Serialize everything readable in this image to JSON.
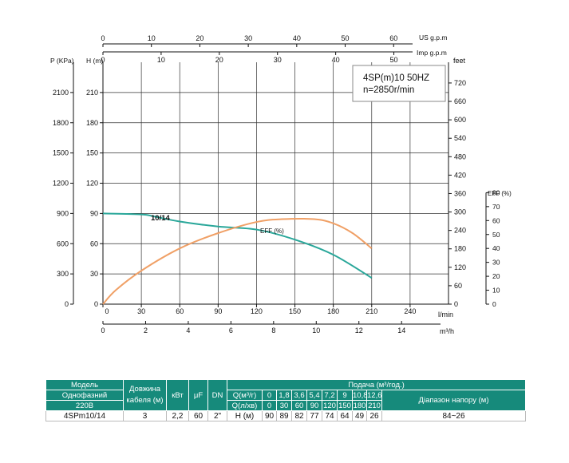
{
  "chart_data": {
    "type": "line",
    "model_label": "4SP(m)10  50HZ",
    "speed_label": "n=2850r/min",
    "curve_label": "10/14",
    "eff_curve_label": "EFF (%)",
    "axes": {
      "p_title": "P (KPa)",
      "h_title": "H (m)",
      "feet_title": "feet",
      "eff_title": "EFF (%)",
      "us_title": "US g.p.m",
      "imp_title": "Imp g.p.m",
      "lmin_title": "l/min",
      "m3h_title": "m³/h",
      "h_ticks": [
        "0",
        "30",
        "60",
        "90",
        "120",
        "150",
        "180",
        "210"
      ],
      "p_ticks": [
        "0",
        "300",
        "600",
        "900",
        "1200",
        "1500",
        "1800",
        "2100"
      ],
      "feet_ticks": [
        "0",
        "60",
        "120",
        "180",
        "240",
        "300",
        "360",
        "420",
        "480",
        "540",
        "600",
        "660",
        "720"
      ],
      "eff_ticks": [
        "0",
        "10",
        "20",
        "30",
        "40",
        "50",
        "60",
        "70",
        "80"
      ],
      "us_ticks": [
        "0",
        "10",
        "20",
        "30",
        "40",
        "50",
        "60"
      ],
      "imp_ticks": [
        "0",
        "10",
        "20",
        "30",
        "40",
        "50"
      ],
      "lmin_ticks": [
        "0",
        "30",
        "60",
        "90",
        "120",
        "150",
        "180",
        "210",
        "240"
      ],
      "m3h_ticks": [
        "0",
        "2",
        "4",
        "6",
        "8",
        "10",
        "12",
        "14"
      ],
      "xlim_lmin": [
        0,
        270
      ],
      "ylim_h": [
        0,
        240
      ]
    },
    "series": [
      {
        "name": "10/14",
        "color": "#2aa79a",
        "x": [
          0,
          30,
          40,
          60,
          90,
          120,
          150,
          180,
          210
        ],
        "y": [
          90,
          89,
          87,
          82,
          77,
          74,
          64,
          49,
          26
        ]
      },
      {
        "name": "EFF (%)",
        "color": "#f0a066",
        "x": [
          0,
          10,
          30,
          60,
          90,
          120,
          140,
          165,
          180,
          195,
          210
        ],
        "y": [
          0,
          10,
          24,
          40,
          51,
          59,
          61,
          61,
          58,
          51,
          40
        ]
      }
    ]
  },
  "table": {
    "model_header": "Модель",
    "phase_label": "Однофазний",
    "voltage_label": "220В",
    "cable_header": "Довжина кабеля (м)",
    "kw_header": "кВт",
    "uf_header": "μF",
    "dn_header": "DN",
    "flow_header": "Подача (м³/год.)",
    "q_m3_label": "Q(м³/г)",
    "q_lmin_label": "Q(л/хв)",
    "h_label": "H (м)",
    "range_header": "Діапазон напору (м)",
    "q_m3_values": [
      "0",
      "1,8",
      "3,6",
      "5,4",
      "7,2",
      "9",
      "10,8",
      "12,6"
    ],
    "q_lmin_values": [
      "0",
      "30",
      "60",
      "90",
      "120",
      "150",
      "180",
      "210"
    ],
    "row": {
      "model": "4SPm10/14",
      "cable": "3",
      "kw": "2,2",
      "uf": "60",
      "dn": "2\"",
      "h_values": [
        "90",
        "89",
        "82",
        "77",
        "74",
        "64",
        "49",
        "26"
      ],
      "range": "84~26"
    }
  }
}
